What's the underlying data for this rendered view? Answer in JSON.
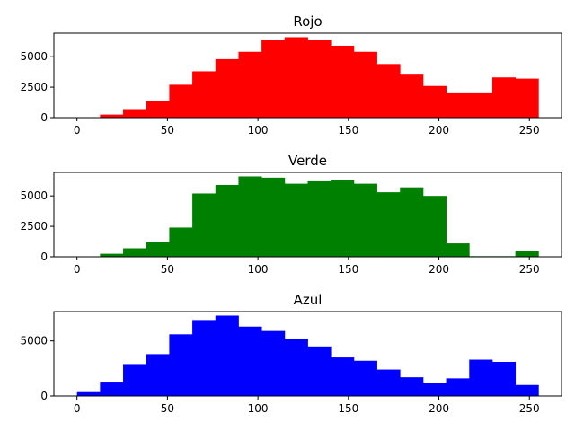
{
  "chart_data": [
    {
      "type": "bar",
      "title": "Rojo",
      "color": "#ff0000",
      "bin_edges": [
        0,
        12.75,
        25.5,
        38.25,
        51,
        63.75,
        76.5,
        89.25,
        102,
        114.75,
        127.5,
        140.25,
        153,
        165.75,
        178.5,
        191.25,
        204,
        216.75,
        229.5,
        242.25,
        255
      ],
      "values": [
        20,
        250,
        700,
        1400,
        2700,
        3800,
        4800,
        5400,
        6400,
        6600,
        6400,
        5900,
        5400,
        4400,
        3600,
        2600,
        2000,
        2000,
        3300,
        3200
      ],
      "xticks": [
        0,
        50,
        100,
        150,
        200,
        250
      ],
      "xtick_labels": [
        "0",
        "50",
        "100",
        "150",
        "200",
        "250"
      ],
      "yticks": [
        0,
        2500,
        5000
      ],
      "ytick_labels": [
        "0",
        "2500",
        "5000"
      ],
      "xlim": [
        -12.75,
        267.75
      ],
      "ylim": [
        0,
        6930
      ]
    },
    {
      "type": "bar",
      "title": "Verde",
      "color": "#008000",
      "bin_edges": [
        0,
        12.75,
        25.5,
        38.25,
        51,
        63.75,
        76.5,
        89.25,
        102,
        114.75,
        127.5,
        140.25,
        153,
        165.75,
        178.5,
        191.25,
        204,
        216.75,
        229.5,
        242.25,
        255
      ],
      "values": [
        20,
        250,
        700,
        1200,
        2400,
        5200,
        5900,
        6600,
        6500,
        6000,
        6200,
        6300,
        6000,
        5300,
        5700,
        5000,
        1100,
        50,
        50,
        450
      ],
      "xticks": [
        0,
        50,
        100,
        150,
        200,
        250
      ],
      "xtick_labels": [
        "0",
        "50",
        "100",
        "150",
        "200",
        "250"
      ],
      "yticks": [
        0,
        2500,
        5000
      ],
      "ytick_labels": [
        "0",
        "2500",
        "5000"
      ],
      "xlim": [
        -12.75,
        267.75
      ],
      "ylim": [
        0,
        6930
      ]
    },
    {
      "type": "bar",
      "title": "Azul",
      "color": "#0000ff",
      "bin_edges": [
        0,
        12.75,
        25.5,
        38.25,
        51,
        63.75,
        76.5,
        89.25,
        102,
        114.75,
        127.5,
        140.25,
        153,
        165.75,
        178.5,
        191.25,
        204,
        216.75,
        229.5,
        242.25,
        255
      ],
      "values": [
        350,
        1300,
        2900,
        3800,
        5600,
        6900,
        7300,
        6300,
        5900,
        5200,
        4500,
        3500,
        3200,
        2400,
        1700,
        1200,
        1600,
        3300,
        3100,
        1000
      ],
      "xticks": [
        0,
        50,
        100,
        150,
        200,
        250
      ],
      "xtick_labels": [
        "0",
        "50",
        "100",
        "150",
        "200",
        "250"
      ],
      "yticks": [
        0,
        5000
      ],
      "ytick_labels": [
        "0",
        "5000"
      ],
      "xlim": [
        -12.75,
        267.75
      ],
      "ylim": [
        0,
        7665
      ]
    }
  ]
}
